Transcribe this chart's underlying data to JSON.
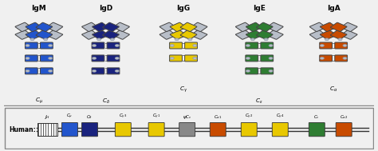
{
  "background_color": "#f0f0f0",
  "antibody_labels": [
    "IgM",
    "IgD",
    "IgG",
    "IgE",
    "IgA"
  ],
  "antibody_colors": [
    "#2255cc",
    "#1a237e",
    "#e8c800",
    "#2e7d32",
    "#c84b00"
  ],
  "heavy_chain_boxes_count": [
    3,
    3,
    2,
    3,
    2
  ],
  "gray": "#b8bec8",
  "gray_dark": "#9098a8",
  "sublabel_texts": [
    "$C_{\\mu}$",
    "$C_{\\delta}$",
    "$C_{\\gamma}$",
    "$C_{\\varepsilon}$",
    "$C_{\\alpha}$"
  ],
  "blue": "#2255cc",
  "dark_navy": "#1a237e",
  "yellow": "#e8c800",
  "green": "#2e7d32",
  "orange": "#c84b00",
  "gray_seg": "#888888",
  "bottom_segments": [
    {
      "x": 1.78,
      "color": "#2255cc",
      "label": "$C_{\\mu}$"
    },
    {
      "x": 2.32,
      "color": "#1a237e",
      "label": "$C_{\\delta}$"
    },
    {
      "x": 3.22,
      "color": "#e8c800",
      "label": "$C_{\\gamma3}$"
    },
    {
      "x": 4.12,
      "color": "#e8c800",
      "label": "$C_{\\gamma1}$"
    },
    {
      "x": 4.95,
      "color": "#888888",
      "label": "$\\psi C_{\\varepsilon}$"
    },
    {
      "x": 5.78,
      "color": "#c84b00",
      "label": "$C_{\\alpha1}$"
    },
    {
      "x": 6.62,
      "color": "#e8c800",
      "label": "$C_{\\gamma2}$"
    },
    {
      "x": 7.46,
      "color": "#e8c800",
      "label": "$C_{\\gamma4}$"
    },
    {
      "x": 8.45,
      "color": "#2e7d32",
      "label": "$C_{\\varepsilon}$"
    },
    {
      "x": 9.18,
      "color": "#c84b00",
      "label": "$C_{\\alpha2}$"
    }
  ]
}
